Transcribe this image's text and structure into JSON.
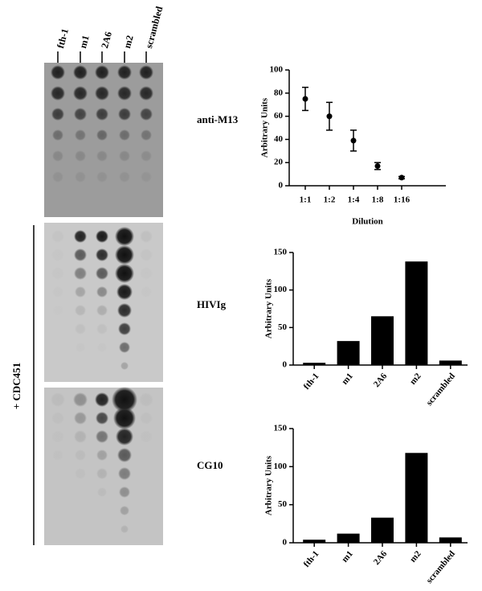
{
  "blot": {
    "columns": [
      "fth-1",
      "m1",
      "2A6",
      "m2",
      "scrambled"
    ],
    "panels": [
      "anti-M13",
      "HIVIg",
      "CG10"
    ],
    "side_label": "+ CDC451"
  },
  "chart_data": [
    {
      "type": "errorbar",
      "categories": [
        "1:1",
        "1:2",
        "1:4",
        "1:8",
        "1:16"
      ],
      "values": [
        75,
        60,
        39,
        17,
        7
      ],
      "errors": [
        10,
        12,
        9,
        3,
        1
      ],
      "color": "#000000",
      "xlabel": "Dilution",
      "ylabel": "Arbitrary Units",
      "ylim": [
        0,
        100
      ],
      "yticks": [
        0,
        20,
        40,
        60,
        80,
        100
      ]
    },
    {
      "type": "bar",
      "categories": [
        "fth-1",
        "m1",
        "2A6",
        "m2",
        "scrambled"
      ],
      "values": [
        3,
        32,
        65,
        138,
        6
      ],
      "color": "#000000",
      "ylabel": "Arbitrary Units",
      "ylim": [
        0,
        150
      ],
      "yticks": [
        0,
        50,
        100,
        150
      ]
    },
    {
      "type": "bar",
      "categories": [
        "fth-1",
        "m1",
        "2A6",
        "m2",
        "scrambled"
      ],
      "values": [
        4,
        12,
        33,
        118,
        7
      ],
      "color": "#000000",
      "ylabel": "Arbitrary Units",
      "ylim": [
        0,
        150
      ],
      "yticks": [
        0,
        50,
        100,
        150
      ]
    }
  ]
}
